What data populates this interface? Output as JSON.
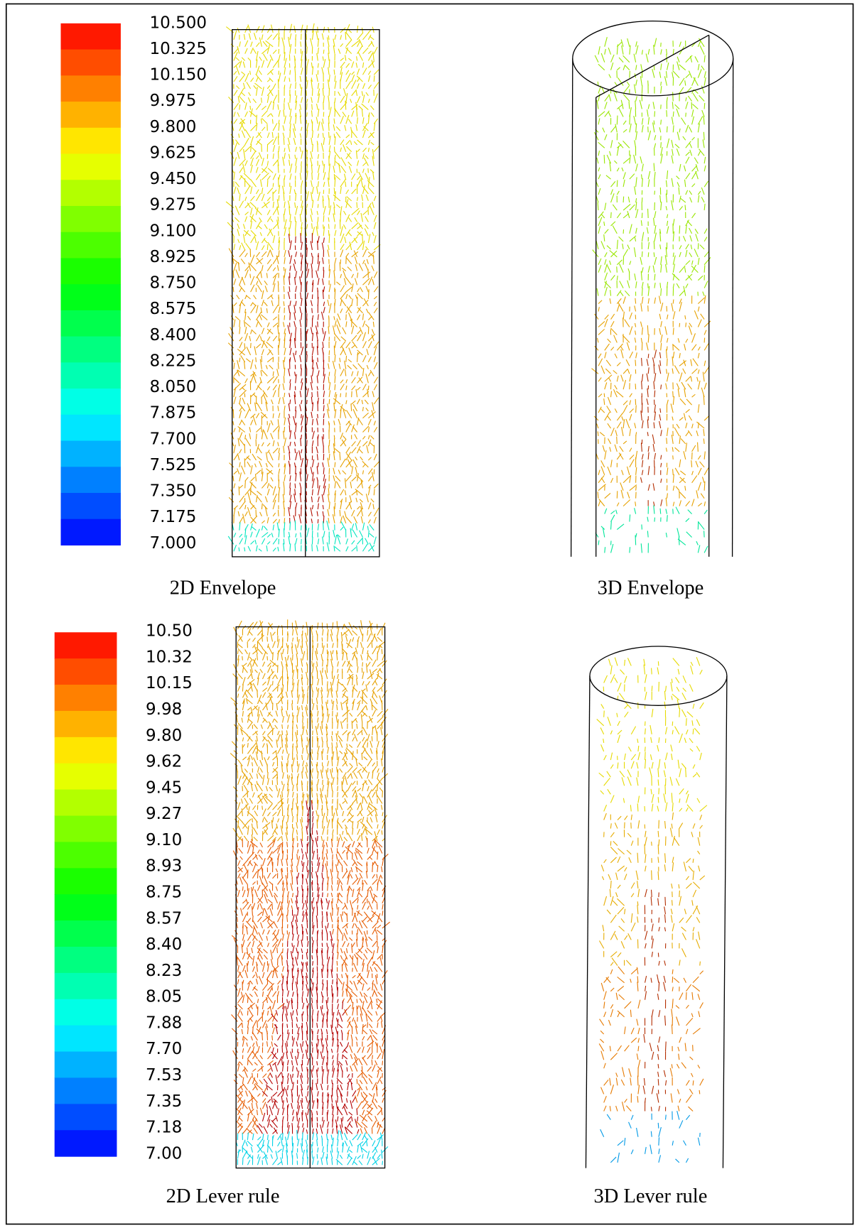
{
  "panels": [
    {
      "caption": "2D Envelope"
    },
    {
      "caption": "3D Envelope"
    },
    {
      "caption": "2D Lever rule"
    },
    {
      "caption": "3D Lever rule"
    }
  ],
  "colorbars": [
    {
      "labels": [
        "10.500",
        "10.325",
        "10.150",
        "9.975",
        "9.800",
        "9.625",
        "9.450",
        "9.275",
        "9.100",
        "8.925",
        "8.750",
        "8.575",
        "8.400",
        "8.225",
        "8.050",
        "7.875",
        "7.700",
        "7.525",
        "7.350",
        "7.175",
        "7.000"
      ]
    },
    {
      "labels": [
        "10.50",
        "10.32",
        "10.15",
        "9.98",
        "9.80",
        "9.62",
        "9.45",
        "9.27",
        "9.10",
        "8.93",
        "8.75",
        "8.57",
        "8.40",
        "8.23",
        "8.05",
        "7.88",
        "7.70",
        "7.53",
        "7.35",
        "7.18",
        "7.00"
      ]
    }
  ]
}
